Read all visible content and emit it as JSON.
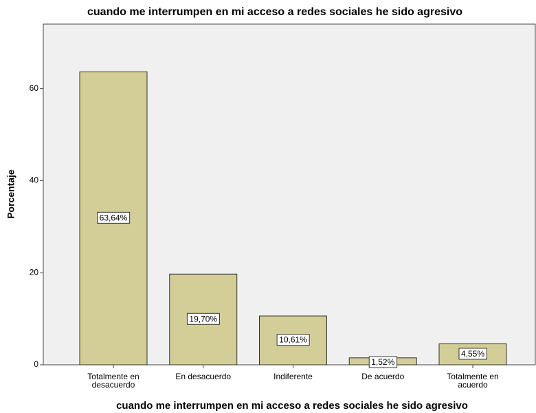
{
  "chart_data": {
    "type": "bar",
    "title": "cuando me interrumpen en mi acceso a redes sociales he sido agresivo",
    "x_label": "cuando me interrumpen en mi acceso a redes sociales he sido agresivo",
    "y_label": "Porcentaje",
    "categories": [
      "Totalmente en desacuerdo",
      "En desacuerdo",
      "Indiferente",
      "De acuerdo",
      "Totalmente en acuerdo"
    ],
    "values": [
      63.64,
      19.7,
      10.61,
      1.52,
      4.55
    ],
    "value_labels": [
      "63,64%",
      "19,70%",
      "10,61%",
      "1,52%",
      "4,55%"
    ],
    "color": "#d3ce97",
    "ylim": [
      0,
      74
    ],
    "yticks": [
      0,
      20,
      40,
      60
    ]
  }
}
